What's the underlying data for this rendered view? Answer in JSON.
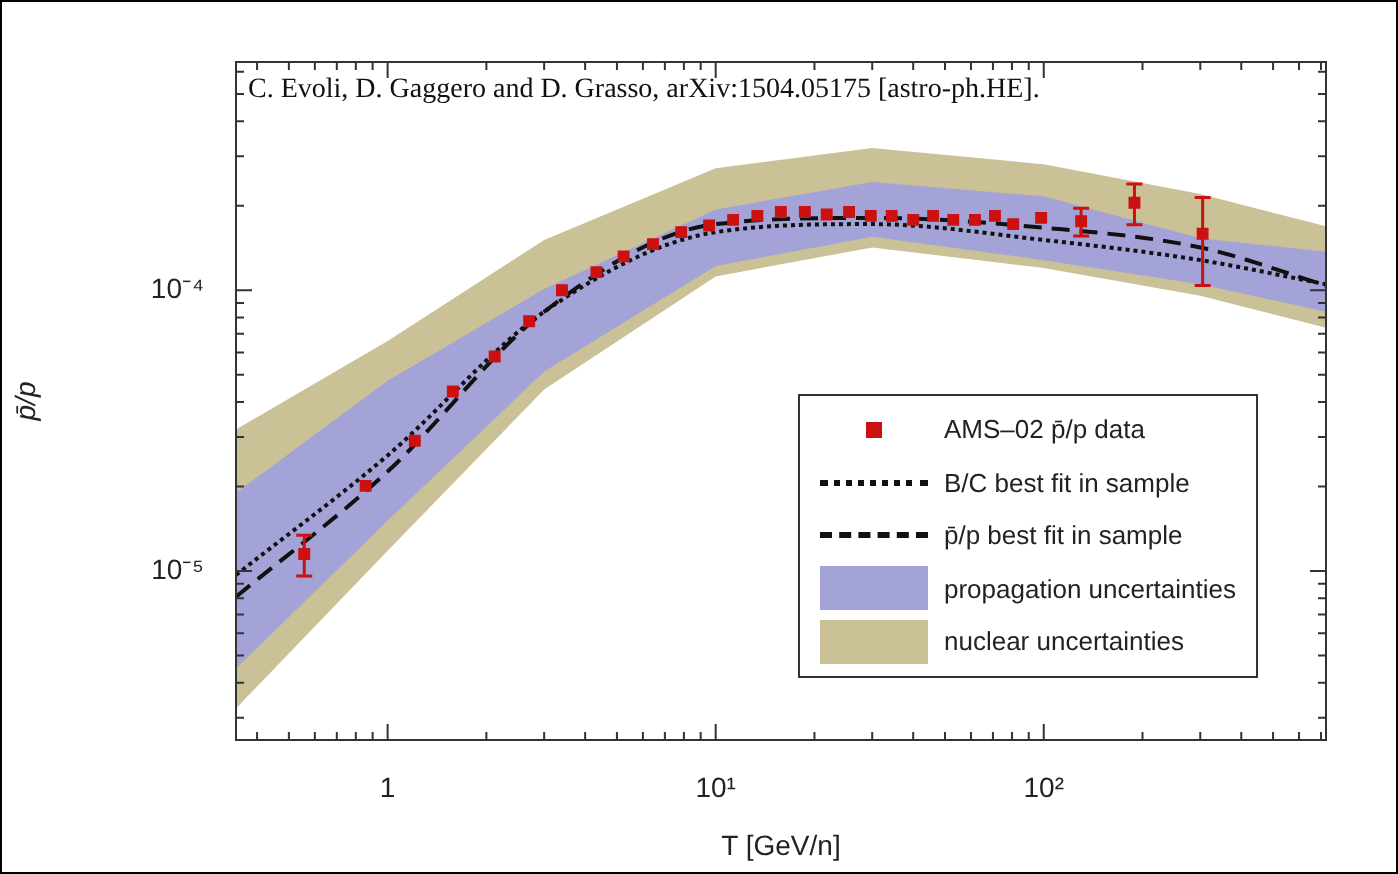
{
  "chart_data": {
    "type": "line",
    "xlabel": "T [GeV/n]",
    "ylabel": "p̄/p",
    "annotations": [
      "C. Evoli, D. Gaggero and D. Grasso, arXiv:1504.05175 [astro-ph.HE]."
    ],
    "log": "xy",
    "legend": "bottom right",
    "xlim": [
      0.345,
      725
    ],
    "ylim": [
      2.5e-06,
      0.00065
    ],
    "xticks": [
      {
        "value": 0.4,
        "label": null
      },
      {
        "value": 0.5,
        "label": null
      },
      {
        "value": 0.6,
        "label": null
      },
      {
        "value": 0.7,
        "label": null
      },
      {
        "value": 0.8,
        "label": null
      },
      {
        "value": 0.9,
        "label": null
      },
      1,
      {
        "value": 2,
        "label": null
      },
      {
        "value": 3,
        "label": null
      },
      {
        "value": 4,
        "label": null
      },
      {
        "value": 5,
        "label": null
      },
      {
        "value": 6,
        "label": null
      },
      {
        "value": 7,
        "label": null
      },
      {
        "value": 8,
        "label": null
      },
      {
        "value": 9,
        "label": null
      },
      {
        "value": 10,
        "label": "10¹"
      },
      {
        "value": 20,
        "label": null
      },
      {
        "value": 30,
        "label": null
      },
      {
        "value": 40,
        "label": null
      },
      {
        "value": 50,
        "label": null
      },
      {
        "value": 60,
        "label": null
      },
      {
        "value": 70,
        "label": null
      },
      {
        "value": 80,
        "label": null
      },
      {
        "value": 90,
        "label": null
      },
      {
        "value": 100,
        "label": "10²"
      },
      {
        "value": 200,
        "label": null
      },
      {
        "value": 300,
        "label": null
      },
      {
        "value": 400,
        "label": null
      },
      {
        "value": 500,
        "label": null
      },
      {
        "value": 600,
        "label": null
      },
      {
        "value": 700,
        "label": null
      }
    ],
    "yticks": [
      {
        "value": 3e-06,
        "label": null
      },
      {
        "value": 4e-06,
        "label": null
      },
      {
        "value": 5e-06,
        "label": null
      },
      {
        "value": 6e-06,
        "label": null
      },
      {
        "value": 7e-06,
        "label": null
      },
      {
        "value": 8e-06,
        "label": null
      },
      {
        "value": 9e-06,
        "label": null
      },
      {
        "value": 1e-05,
        "label": "10⁻⁵"
      },
      {
        "value": 2e-05,
        "label": null
      },
      {
        "value": 3e-05,
        "label": null
      },
      {
        "value": 4e-05,
        "label": null
      },
      {
        "value": 5e-05,
        "label": null
      },
      {
        "value": 6e-05,
        "label": null
      },
      {
        "value": 7e-05,
        "label": null
      },
      {
        "value": 8e-05,
        "label": null
      },
      {
        "value": 9e-05,
        "label": null
      },
      {
        "value": 0.0001,
        "label": "10⁻⁴"
      },
      {
        "value": 0.0002,
        "label": null
      },
      {
        "value": 0.0003,
        "label": null
      },
      {
        "value": 0.0004,
        "label": null
      },
      {
        "value": 0.0005,
        "label": null
      },
      {
        "value": 0.0006,
        "label": null
      }
    ],
    "series": [
      {
        "name": "AMS–02 p̄/p data",
        "type": "scatter",
        "marker": "square",
        "color": "#cc1111",
        "x": [
          0.557,
          0.857,
          1.21,
          1.58,
          2.12,
          2.7,
          3.4,
          4.33,
          5.24,
          6.44,
          7.85,
          9.55,
          11.3,
          13.4,
          15.8,
          18.7,
          21.8,
          25.5,
          29.7,
          34.4,
          40,
          46,
          53,
          61.7,
          71,
          80.7,
          98.2,
          130,
          189,
          305
        ],
        "values": [
          1.15e-05,
          2.01e-05,
          2.91e-05,
          4.36e-05,
          5.81e-05,
          7.75e-05,
          0.0001,
          0.000116,
          0.000132,
          0.000146,
          0.000161,
          0.00017,
          0.000178,
          0.000184,
          0.00019,
          0.00019,
          0.000186,
          0.00019,
          0.000184,
          0.000184,
          0.000178,
          0.000184,
          0.000178,
          0.000178,
          0.000184,
          0.000172,
          0.000181,
          0.000176,
          0.000205,
          0.000159
        ],
        "errors": [
          1.9e-06,
          null,
          null,
          null,
          null,
          null,
          null,
          null,
          null,
          null,
          null,
          null,
          null,
          null,
          null,
          null,
          null,
          null,
          null,
          null,
          null,
          null,
          null,
          null,
          null,
          null,
          null,
          2e-05,
          3.4e-05,
          5.5e-05
        ]
      },
      {
        "name": "B/C best fit in sample",
        "type": "line",
        "line_style": "dotted",
        "color": "#111111",
        "x": [
          0.345,
          1,
          3,
          10,
          30,
          100,
          300,
          725
        ],
        "values": [
          9.68e-06,
          2.58e-05,
          8.38e-05,
          0.000161,
          0.000172,
          0.000151,
          0.000128,
          0.000105
        ]
      },
      {
        "name": "p̄/p best fit in sample",
        "type": "line",
        "line_style": "dashed",
        "color": "#111111",
        "x": [
          0.345,
          1,
          3,
          10,
          30,
          100,
          300,
          725
        ],
        "values": [
          8.09e-06,
          2.26e-05,
          8.38e-05,
          0.000172,
          0.000181,
          0.000167,
          0.000142,
          0.000104
        ]
      },
      {
        "name": "propagation uncertainties",
        "type": "area",
        "color": "#a3a3d8",
        "x": [
          0.345,
          1,
          3,
          10,
          30,
          100,
          300,
          725
        ],
        "values": [
          null,
          null,
          null,
          null,
          null,
          null,
          null,
          null
        ],
        "lower": [
          4.49e-06,
          1.51e-05,
          5.13e-05,
          0.000122,
          0.000155,
          0.000128,
          0.000105,
          8.38e-05
        ],
        "upper": [
          1.9e-05,
          4.76e-05,
          0.000101,
          0.000194,
          0.000243,
          0.000216,
          0.000153,
          0.000137
        ]
      },
      {
        "name": "nuclear uncertainties",
        "type": "area",
        "color": "#cbc196",
        "x": [
          0.345,
          1,
          3,
          10,
          30,
          100,
          300,
          725
        ],
        "values": [
          null,
          null,
          null,
          null,
          null,
          null,
          null,
          null
        ],
        "lower": [
          3.24e-06,
          1.18e-05,
          4.43e-05,
          0.000112,
          0.000142,
          0.00012,
          9.55e-05,
          7.35e-05
        ],
        "upper": [
          3.19e-05,
          6.59e-05,
          0.000151,
          0.000272,
          0.000321,
          0.000281,
          0.00022,
          0.000169
        ]
      }
    ]
  }
}
